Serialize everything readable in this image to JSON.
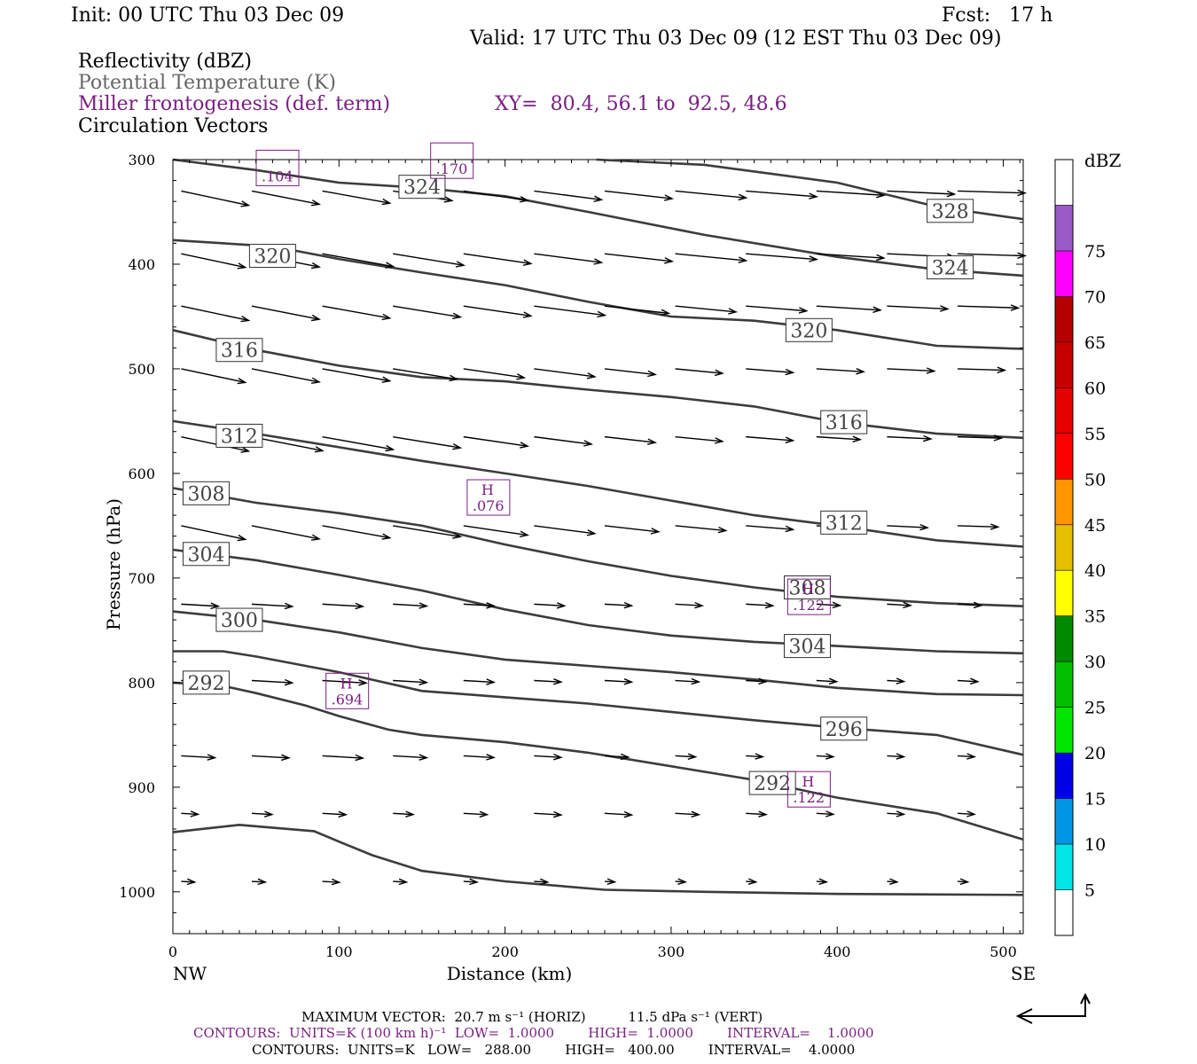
{
  "header": {
    "init": "Init: 00 UTC Thu 03 Dec 09",
    "fcst": "Fcst:   17 h",
    "valid": "Valid: 17 UTC Thu 03 Dec 09 (12 EST Thu 03 Dec 09)",
    "field1": "Reflectivity (dBZ)",
    "field2": "Potential Temperature (K)",
    "field3": "Miller frontogenesis (def. term)",
    "xy": "XY=  80.4, 56.1 to  92.5, 48.6",
    "field4": "Circulation Vectors"
  },
  "chart_data": {
    "type": "cross-section",
    "xlabel": "Distance (km)",
    "ylabel": "Pressure (hPa)",
    "xlim": [
      0,
      512
    ],
    "ylim": [
      1040,
      300
    ],
    "x_ticks": [
      0,
      100,
      200,
      300,
      400,
      500
    ],
    "y_ticks": [
      300,
      400,
      500,
      600,
      700,
      800,
      900,
      1000
    ],
    "x_end_labels": {
      "left": "NW",
      "right": "SE"
    },
    "colorbar": {
      "title": "dBZ",
      "levels": [
        "5",
        "10",
        "15",
        "20",
        "25",
        "30",
        "35",
        "40",
        "45",
        "50",
        "55",
        "60",
        "65",
        "70",
        "75"
      ],
      "colors": [
        "#ffffff",
        "#00e5e5",
        "#0096e6",
        "#0000e6",
        "#00e600",
        "#00c000",
        "#008a00",
        "#ffff00",
        "#e6be00",
        "#ff9600",
        "#ff0000",
        "#e60000",
        "#c80000",
        "#b40000",
        "#ff00ff",
        "#9a5ac8",
        "#ffffff"
      ]
    },
    "theta_contours": [
      {
        "value": 328,
        "points": [
          [
            255,
            300
          ],
          [
            320,
            305
          ],
          [
            400,
            322
          ],
          [
            460,
            345
          ],
          [
            512,
            357
          ]
        ],
        "labels": [
          [
            468,
            349
          ]
        ]
      },
      {
        "value": 324,
        "points": [
          [
            0,
            300
          ],
          [
            50,
            310
          ],
          [
            100,
            322
          ],
          [
            150,
            327
          ],
          [
            200,
            335
          ],
          [
            250,
            350
          ],
          [
            320,
            372
          ],
          [
            400,
            393
          ],
          [
            460,
            405
          ],
          [
            512,
            411
          ]
        ],
        "labels": [
          [
            150,
            326
          ],
          [
            468,
            403
          ]
        ]
      },
      {
        "value": 320,
        "points": [
          [
            0,
            377
          ],
          [
            60,
            383
          ],
          [
            100,
            395
          ],
          [
            150,
            408
          ],
          [
            200,
            420
          ],
          [
            250,
            436
          ],
          [
            300,
            450
          ],
          [
            350,
            454
          ],
          [
            400,
            463
          ],
          [
            460,
            478
          ],
          [
            512,
            481
          ]
        ],
        "labels": [
          [
            60,
            392
          ],
          [
            383,
            463
          ]
        ]
      },
      {
        "value": 316,
        "points": [
          [
            0,
            463
          ],
          [
            50,
            482
          ],
          [
            100,
            497
          ],
          [
            150,
            508
          ],
          [
            200,
            512
          ],
          [
            250,
            520
          ],
          [
            300,
            527
          ],
          [
            350,
            536
          ],
          [
            400,
            551
          ],
          [
            460,
            562
          ],
          [
            512,
            566
          ]
        ],
        "labels": [
          [
            40,
            482
          ],
          [
            404,
            551
          ]
        ]
      },
      {
        "value": 312,
        "points": [
          [
            0,
            550
          ],
          [
            50,
            562
          ],
          [
            100,
            575
          ],
          [
            150,
            588
          ],
          [
            200,
            600
          ],
          [
            250,
            612
          ],
          [
            300,
            626
          ],
          [
            350,
            640
          ],
          [
            400,
            650
          ],
          [
            460,
            664
          ],
          [
            512,
            670
          ]
        ],
        "labels": [
          [
            40,
            564
          ],
          [
            404,
            647
          ]
        ]
      },
      {
        "value": 308,
        "points": [
          [
            0,
            614
          ],
          [
            50,
            628
          ],
          [
            100,
            638
          ],
          [
            150,
            650
          ],
          [
            200,
            668
          ],
          [
            250,
            684
          ],
          [
            300,
            698
          ],
          [
            350,
            709
          ],
          [
            400,
            718
          ],
          [
            460,
            724
          ],
          [
            512,
            727
          ]
        ],
        "labels": [
          [
            20,
            619
          ],
          [
            382,
            709
          ]
        ]
      },
      {
        "value": 304,
        "points": [
          [
            0,
            673
          ],
          [
            50,
            683
          ],
          [
            100,
            697
          ],
          [
            150,
            712
          ],
          [
            200,
            730
          ],
          [
            250,
            745
          ],
          [
            300,
            755
          ],
          [
            350,
            761
          ],
          [
            400,
            765
          ],
          [
            460,
            770
          ],
          [
            512,
            772
          ]
        ],
        "labels": [
          [
            20,
            677
          ],
          [
            382,
            765
          ]
        ]
      },
      {
        "value": 300,
        "points": [
          [
            0,
            732
          ],
          [
            50,
            740
          ],
          [
            100,
            752
          ],
          [
            150,
            767
          ],
          [
            200,
            778
          ],
          [
            250,
            784
          ],
          [
            300,
            790
          ],
          [
            350,
            797
          ],
          [
            400,
            805
          ],
          [
            460,
            811
          ],
          [
            512,
            812
          ]
        ],
        "labels": [
          [
            40,
            740
          ]
        ]
      },
      {
        "value": 296,
        "points": [
          [
            0,
            770
          ],
          [
            30,
            770
          ],
          [
            50,
            775
          ],
          [
            100,
            790
          ],
          [
            150,
            808
          ],
          [
            200,
            814
          ],
          [
            250,
            820
          ],
          [
            300,
            828
          ],
          [
            350,
            836
          ],
          [
            400,
            843
          ],
          [
            460,
            850
          ],
          [
            512,
            869
          ]
        ],
        "labels": [
          [
            404,
            844
          ]
        ]
      },
      {
        "value": 292,
        "points": [
          [
            0,
            800
          ],
          [
            30,
            803
          ],
          [
            50,
            810
          ],
          [
            80,
            822
          ],
          [
            100,
            832
          ],
          [
            130,
            845
          ],
          [
            150,
            850
          ],
          [
            200,
            857
          ],
          [
            250,
            867
          ],
          [
            300,
            880
          ],
          [
            350,
            893
          ],
          [
            400,
            910
          ],
          [
            460,
            925
          ],
          [
            512,
            950
          ]
        ],
        "labels": [
          [
            20,
            800
          ],
          [
            361,
            896
          ]
        ]
      },
      {
        "value": 288,
        "points": [
          [
            0,
            943
          ],
          [
            40,
            936
          ],
          [
            85,
            942
          ],
          [
            100,
            952
          ],
          [
            120,
            965
          ],
          [
            150,
            980
          ],
          [
            200,
            990
          ],
          [
            260,
            998
          ],
          [
            320,
            1000
          ],
          [
            400,
            1002
          ],
          [
            512,
            1003
          ]
        ],
        "labels": []
      }
    ],
    "frontogenesis_labels": [
      {
        "kind": "H",
        "value": ".076",
        "x": 190,
        "y": 623
      },
      {
        "kind": "H",
        "value": ".122",
        "x": 383,
        "y": 718
      },
      {
        "kind": "H",
        "value": ".694",
        "x": 105,
        "y": 808
      },
      {
        "kind": "H",
        "value": ".122",
        "x": 383,
        "y": 902
      },
      {
        "kind": "",
        "value": ".104",
        "x": 63,
        "y": 308
      },
      {
        "kind": "",
        "value": ".170",
        "x": 168,
        "y": 301
      }
    ],
    "vector_rows": [
      {
        "p": 330,
        "u": [
          40,
          40,
          40,
          35,
          38,
          40,
          40,
          42,
          42,
          40,
          40,
          40
        ]
      },
      {
        "p": 390,
        "u": [
          38,
          40,
          42,
          42,
          40,
          40,
          40,
          42,
          42,
          40,
          40,
          40
        ]
      },
      {
        "p": 440,
        "u": [
          40,
          40,
          40,
          40,
          40,
          42,
          38,
          36,
          36,
          38,
          36,
          36
        ]
      },
      {
        "p": 500,
        "u": [
          38,
          40,
          40,
          38,
          36,
          36,
          30,
          28,
          28,
          28,
          28,
          28
        ]
      },
      {
        "p": 565,
        "u": [
          40,
          42,
          42,
          40,
          38,
          34,
          30,
          28,
          28,
          26,
          26,
          26
        ]
      },
      {
        "p": 650,
        "u": [
          38,
          40,
          40,
          40,
          38,
          36,
          32,
          30,
          28,
          26,
          24,
          24
        ]
      },
      {
        "p": 725,
        "u": [
          22,
          24,
          24,
          20,
          18,
          18,
          16,
          16,
          16,
          14,
          14,
          14
        ]
      },
      {
        "p": 798,
        "u": [
          22,
          24,
          26,
          20,
          18,
          16,
          16,
          14,
          12,
          12,
          10,
          12
        ]
      },
      {
        "p": 870,
        "u": [
          20,
          22,
          24,
          20,
          18,
          16,
          14,
          12,
          10,
          10,
          10,
          10
        ]
      },
      {
        "p": 925,
        "u": [
          10,
          12,
          14,
          12,
          14,
          16,
          16,
          14,
          12,
          10,
          10,
          10
        ]
      },
      {
        "p": 990,
        "u": [
          8,
          8,
          10,
          8,
          8,
          8,
          6,
          6,
          6,
          6,
          6,
          6
        ]
      }
    ],
    "max_vector": "MAXIMUM VECTOR:  20.7 m s⁻¹ (HORIZ)          11.5 dPa s⁻¹ (VERT)",
    "contours_fronto": "CONTOURS:  UNITS=K (100 km h)⁻¹  LOW=  1.0000        HIGH=  1.0000        INTERVAL=    1.0000",
    "contours_theta": "CONTOURS:  UNITS=K   LOW=   288.00        HIGH=   400.00        INTERVAL=    4.0000"
  }
}
